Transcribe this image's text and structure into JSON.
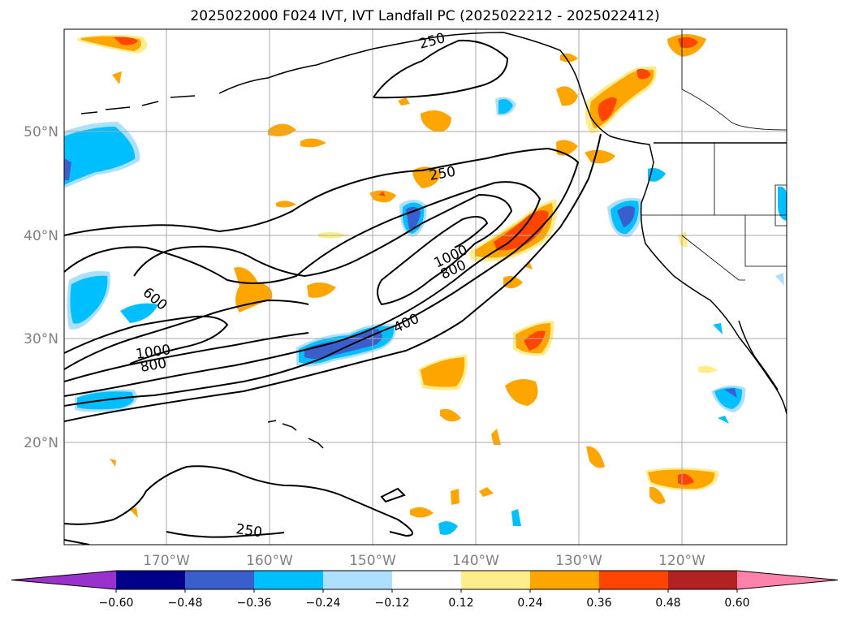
{
  "title": "2025022000 F024 IVT, IVT Landfall PC (2025022212 - 2025022412)",
  "lat_labels": [
    "50°N",
    "40°N",
    "30°N",
    "20°N"
  ],
  "lon_labels": [
    "170°W",
    "160°W",
    "150°W",
    "140°W",
    "130°W",
    "120°W"
  ],
  "contour_labels": [
    "250",
    "250",
    "250",
    "600",
    "1000",
    "800",
    "1000",
    "800",
    "400"
  ],
  "colorbar": {
    "ticks": [
      "−0.60",
      "−0.48",
      "−0.36",
      "−0.24",
      "−0.12",
      "0.12",
      "0.24",
      "0.36",
      "0.48",
      "0.60"
    ],
    "colors": [
      "#9932CC",
      "#00008B",
      "#3A5FCD",
      "#00BFFF",
      "#ADDFFF",
      "#FFFFFF",
      "#FFEC8B",
      "#FFA500",
      "#FF4500",
      "#B22222",
      "#FF82AB"
    ]
  }
}
